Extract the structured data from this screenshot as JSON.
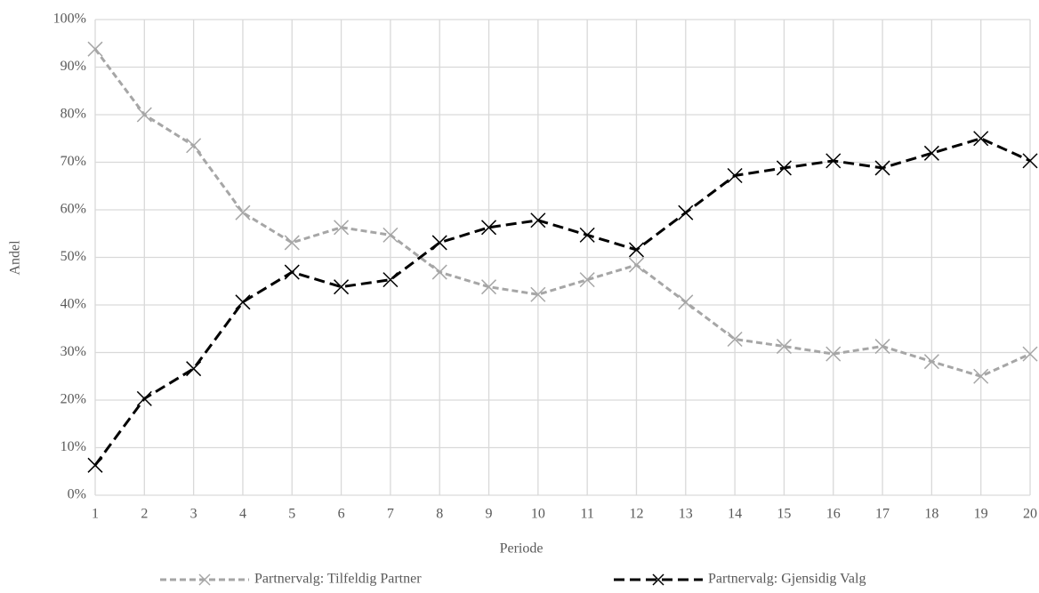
{
  "chart_data": {
    "type": "line",
    "x_label": "Periode",
    "y_label": "Andel",
    "x": [
      1,
      2,
      3,
      4,
      5,
      6,
      7,
      8,
      9,
      10,
      11,
      12,
      13,
      14,
      15,
      16,
      17,
      18,
      19,
      20
    ],
    "xlim": [
      1,
      20
    ],
    "xticks": [
      1,
      2,
      3,
      4,
      5,
      6,
      7,
      8,
      9,
      10,
      11,
      12,
      13,
      14,
      15,
      16,
      17,
      18,
      19,
      20
    ],
    "ylim": [
      0,
      100
    ],
    "yticks": [
      {
        "value": 0,
        "label": "0%"
      },
      {
        "value": 10,
        "label": "10%"
      },
      {
        "value": 20,
        "label": "20%"
      },
      {
        "value": 30,
        "label": "30%"
      },
      {
        "value": 40,
        "label": "40%"
      },
      {
        "value": 50,
        "label": "50%"
      },
      {
        "value": 60,
        "label": "60%"
      },
      {
        "value": 70,
        "label": "70%"
      },
      {
        "value": 80,
        "label": "80%"
      },
      {
        "value": 90,
        "label": "90%"
      },
      {
        "value": 100,
        "label": "100%"
      }
    ],
    "grid": true,
    "legend": "bottom",
    "series": [
      {
        "name": "Partnervalg: Tilfeldig Partner",
        "color": "#a6a6a6",
        "values": [
          93.8,
          80,
          73.5,
          59.4,
          53.1,
          56.3,
          54.7,
          46.9,
          43.8,
          42.2,
          45.3,
          48.4,
          40.6,
          32.8,
          31.3,
          29.7,
          31.3,
          28.1,
          25,
          29.7
        ]
      },
      {
        "name": "Partnervalg: Gjensidig Valg",
        "color": "#000000",
        "values": [
          6.3,
          20.3,
          26.6,
          40.6,
          46.9,
          43.8,
          45.3,
          53.1,
          56.3,
          57.8,
          54.7,
          51.6,
          59.4,
          67.2,
          68.8,
          70.3,
          68.8,
          71.9,
          75,
          70.3
        ]
      }
    ]
  }
}
